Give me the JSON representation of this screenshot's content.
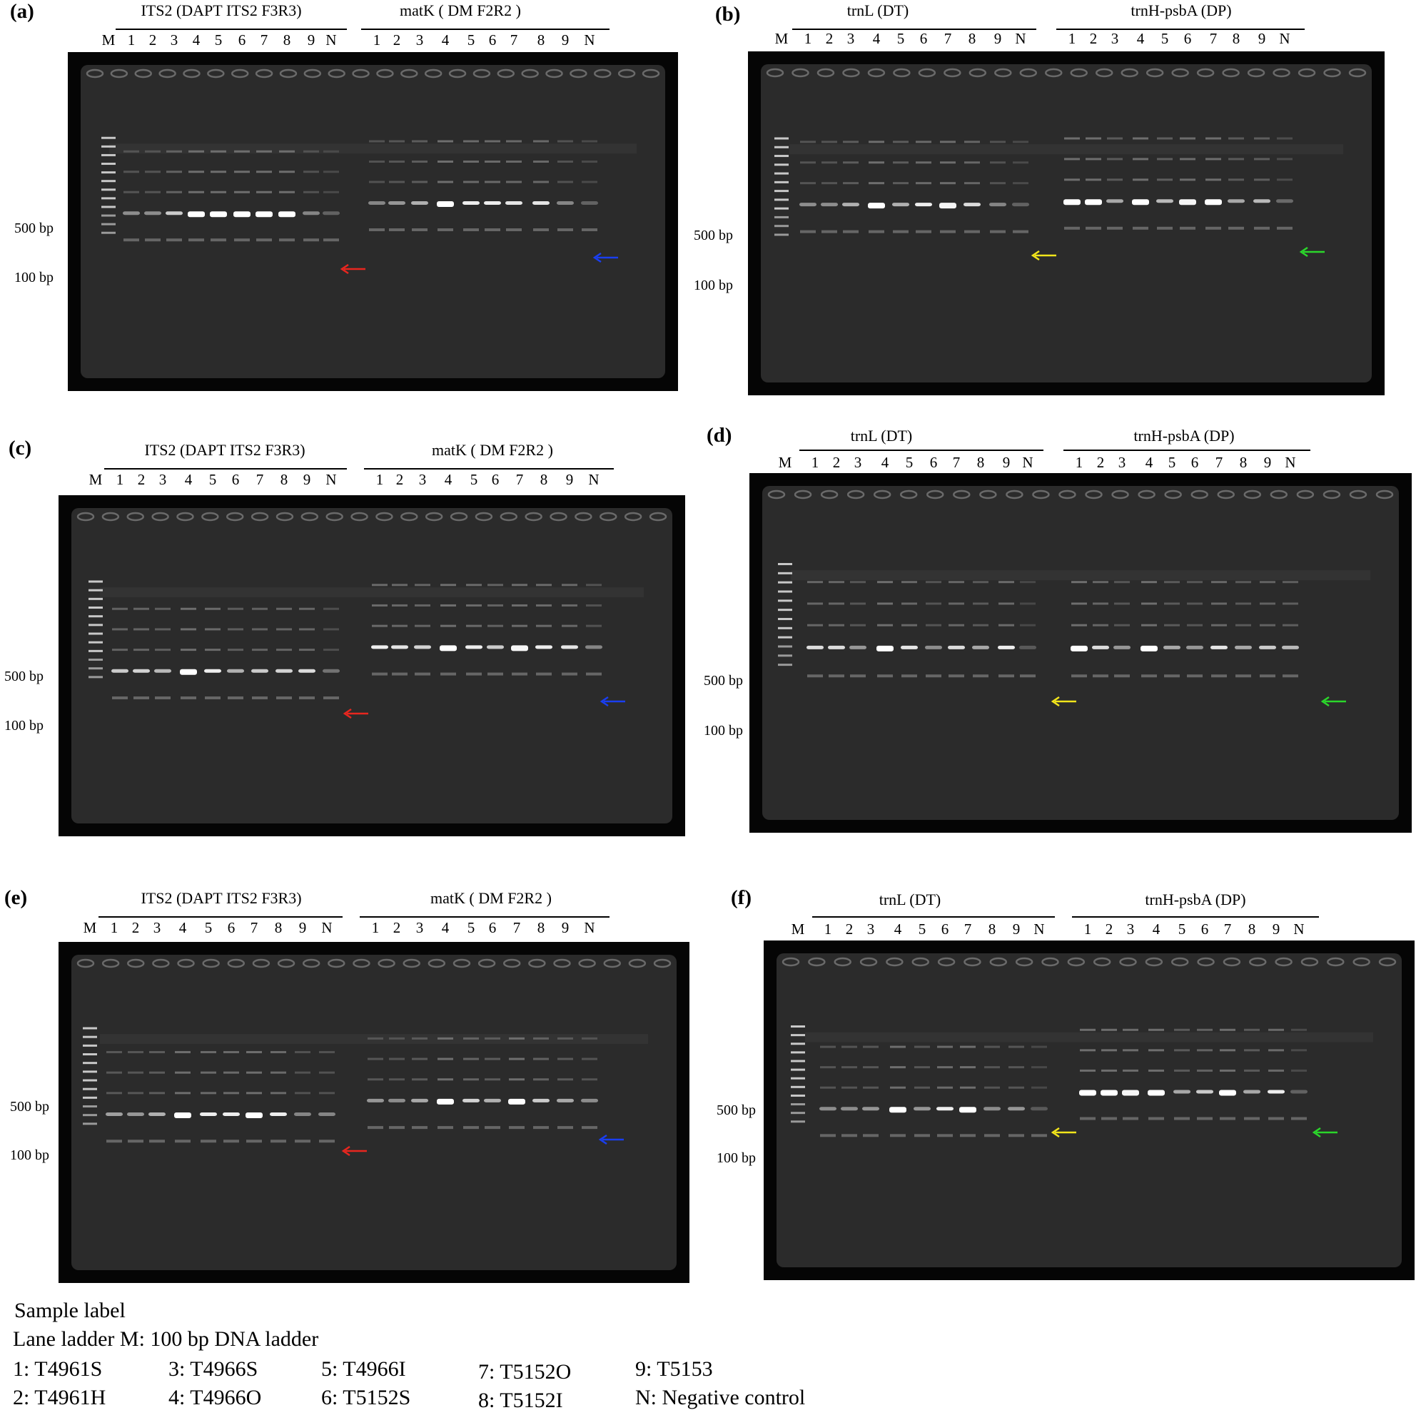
{
  "panels": [
    {
      "label": "(a)",
      "group1": "ITS2 (DAPT ITS2 F3R3)",
      "group2": "matK ( DM F2R2 )",
      "arrow1": "#e8261f",
      "arrow2": "#1a3ef0"
    },
    {
      "label": "(b)",
      "group1": "trnL (DT)",
      "group2": "trnH-psbA (DP)",
      "arrow1": "#f2e51b",
      "arrow2": "#2bd62b"
    },
    {
      "label": "(c)",
      "group1": "ITS2 (DAPT ITS2 F3R3)",
      "group2": "matK ( DM F2R2 )",
      "arrow1": "#e8261f",
      "arrow2": "#1a3ef0"
    },
    {
      "label": "(d)",
      "group1": "trnL (DT)",
      "group2": "trnH-psbA (DP)",
      "arrow1": "#f2e51b",
      "arrow2": "#2bd62b"
    },
    {
      "label": "(e)",
      "group1": "ITS2 (DAPT ITS2 F3R3)",
      "group2": "matK ( DM F2R2 )",
      "arrow1": "#e8261f",
      "arrow2": "#1a3ef0"
    },
    {
      "label": "(f)",
      "group1": "trnL (DT)",
      "group2": "trnH-psbA (DP)",
      "arrow1": "#f2e51b",
      "arrow2": "#2bd62b"
    }
  ],
  "lanes": {
    "ladder": "M",
    "group": [
      "1",
      "2",
      "3",
      "4",
      "5",
      "6",
      "7",
      "8",
      "9",
      "N"
    ]
  },
  "markers": {
    "upper": "500 bp",
    "lower": "100 bp"
  },
  "legend": {
    "title": "Sample label",
    "ladder": "Lane ladder M: 100 bp DNA ladder",
    "items": [
      "1: T4961S",
      "2: T4961H",
      "3: T4966S",
      "4: T4966O",
      "5: T4966I",
      "6: T5152S",
      "7: T5152O",
      "8: T5152I",
      "9: T5153",
      "N: Negative control"
    ]
  }
}
